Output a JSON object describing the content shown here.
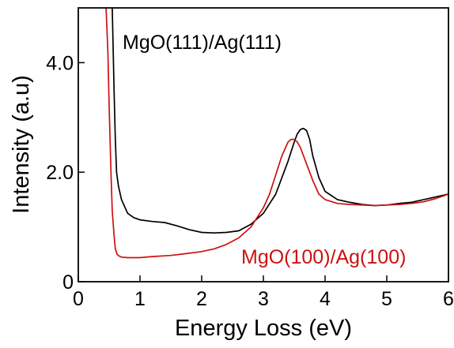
{
  "chart_data": {
    "type": "line",
    "title": "",
    "xlabel": "Energy Loss (eV)",
    "ylabel": "Intensity (a.u)",
    "xlim": [
      0,
      6
    ],
    "ylim": [
      0,
      5
    ],
    "x_ticks": [
      0,
      1,
      2,
      3,
      4,
      5,
      6
    ],
    "x_tick_labels": [
      "0",
      "1",
      "2",
      "3",
      "4",
      "5",
      "6"
    ],
    "y_ticks": [
      0,
      2,
      4
    ],
    "y_tick_labels": [
      "0",
      "2.0",
      "4.0"
    ],
    "grid": false,
    "series": [
      {
        "name": "MgO(111)/Ag(111)",
        "color": "#000000",
        "x": [
          0.55,
          0.56,
          0.58,
          0.6,
          0.62,
          0.65,
          0.7,
          0.8,
          0.9,
          1.0,
          1.2,
          1.4,
          1.6,
          1.8,
          2.0,
          2.2,
          2.4,
          2.6,
          2.8,
          3.0,
          3.2,
          3.3,
          3.4,
          3.5,
          3.55,
          3.6,
          3.65,
          3.7,
          3.75,
          3.8,
          3.9,
          4.0,
          4.2,
          4.4,
          4.6,
          4.8,
          5.0,
          5.2,
          5.4,
          5.6,
          5.8,
          6.0
        ],
        "y": [
          5.0,
          4.5,
          3.5,
          2.6,
          2.0,
          1.75,
          1.5,
          1.25,
          1.17,
          1.13,
          1.1,
          1.08,
          1.02,
          0.95,
          0.9,
          0.89,
          0.9,
          0.93,
          1.05,
          1.25,
          1.6,
          1.9,
          2.2,
          2.55,
          2.7,
          2.78,
          2.8,
          2.76,
          2.6,
          2.3,
          1.9,
          1.65,
          1.5,
          1.45,
          1.41,
          1.39,
          1.4,
          1.43,
          1.45,
          1.5,
          1.55,
          1.6
        ]
      },
      {
        "name": "MgO(100)/Ag(100)",
        "color": "#cc1111",
        "x": [
          0.45,
          0.48,
          0.5,
          0.53,
          0.55,
          0.58,
          0.6,
          0.63,
          0.66,
          0.7,
          0.8,
          1.0,
          1.2,
          1.5,
          1.8,
          2.0,
          2.2,
          2.4,
          2.6,
          2.8,
          3.0,
          3.1,
          3.2,
          3.3,
          3.4,
          3.45,
          3.5,
          3.55,
          3.6,
          3.7,
          3.8,
          3.9,
          4.0,
          4.2,
          4.4,
          4.6,
          4.8,
          5.0,
          5.2,
          5.4,
          5.6,
          5.8,
          6.0
        ],
        "y": [
          5.0,
          4.2,
          3.2,
          2.0,
          1.3,
          0.85,
          0.6,
          0.5,
          0.47,
          0.45,
          0.44,
          0.44,
          0.46,
          0.48,
          0.52,
          0.55,
          0.6,
          0.68,
          0.8,
          1.0,
          1.35,
          1.6,
          1.95,
          2.3,
          2.55,
          2.6,
          2.6,
          2.55,
          2.45,
          2.15,
          1.85,
          1.6,
          1.5,
          1.43,
          1.41,
          1.4,
          1.39,
          1.4,
          1.41,
          1.43,
          1.46,
          1.52,
          1.6
        ]
      }
    ]
  }
}
